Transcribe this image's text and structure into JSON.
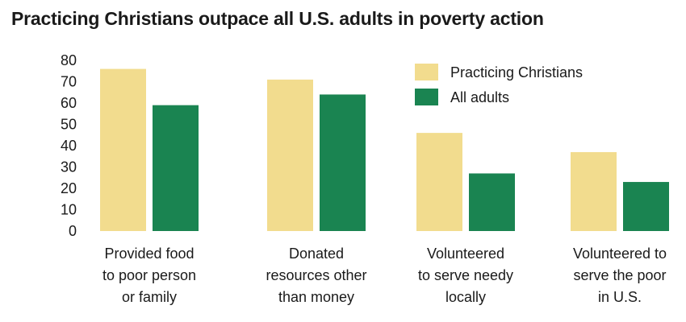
{
  "chart_data": {
    "type": "bar",
    "title": "Practicing Christians outpace all U.S. adults in poverty action",
    "xlabel": "",
    "ylabel": "",
    "ylim": [
      0,
      80
    ],
    "yticks": [
      0,
      10,
      20,
      30,
      40,
      50,
      60,
      70,
      80
    ],
    "categories": [
      [
        "Provided food",
        "to poor person",
        "or family"
      ],
      [
        "Donated",
        "resources other",
        "than money"
      ],
      [
        "Volunteered",
        "to serve needy",
        "locally"
      ],
      [
        "Volunteered to",
        "serve the poor",
        "in U.S."
      ]
    ],
    "series": [
      {
        "name": "Practicing Christians",
        "color": "#f2dc8e",
        "values": [
          76,
          71,
          46,
          37
        ]
      },
      {
        "name": "All adults",
        "color": "#1a8451",
        "values": [
          59,
          64,
          27,
          23
        ]
      }
    ],
    "legend_position": "top-right",
    "grid": false
  }
}
